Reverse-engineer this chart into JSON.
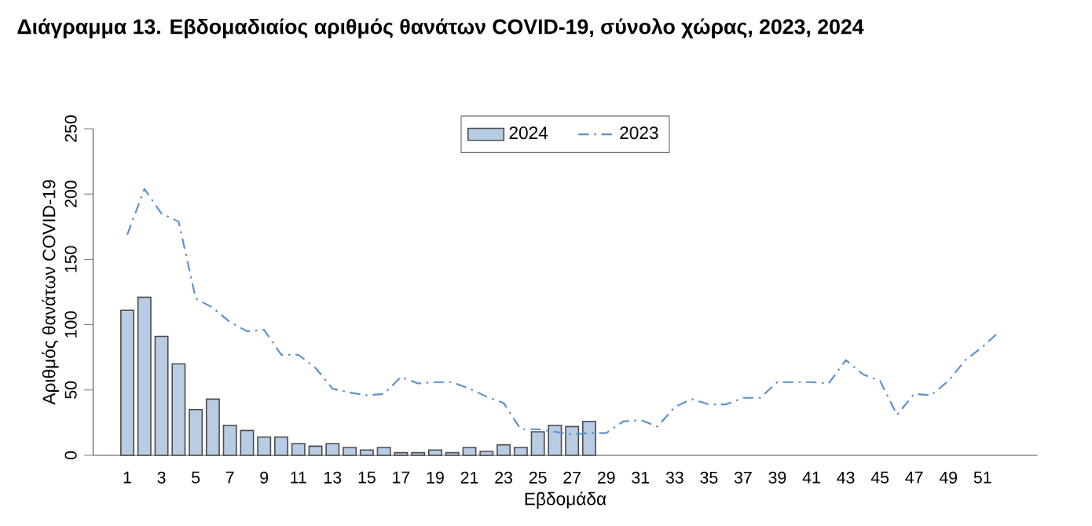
{
  "chart_data": {
    "type": "bar",
    "title": "Διάγραμμα 13. Εβδομαδιαίος αριθμός θανάτων COVID-19, σύνολο χώρας, 2023, 2024",
    "xlabel": "Εβδομάδα",
    "ylabel": "Αριθμός θανάτων COVID-19",
    "categories": [
      "1",
      null,
      "3",
      null,
      "5",
      null,
      "7",
      null,
      "9",
      null,
      "11",
      null,
      "13",
      null,
      "15",
      null,
      "17",
      null,
      "19",
      null,
      "21",
      null,
      "23",
      null,
      "25",
      null,
      "27",
      null,
      "29",
      null,
      "31",
      null,
      "33",
      null,
      "35",
      null,
      "37",
      null,
      "39",
      null,
      "41",
      null,
      "43",
      null,
      "45",
      null,
      "47",
      null,
      "49",
      null,
      "51",
      null
    ],
    "series": [
      {
        "name": "2024",
        "color": "#b8cce4",
        "values": [
          111,
          121,
          91,
          70,
          35,
          43,
          23,
          19,
          14,
          14,
          9,
          7,
          9,
          6,
          4,
          6,
          2,
          2,
          4,
          2,
          6,
          3,
          8,
          6,
          18,
          23,
          22,
          26,
          null,
          null,
          null,
          null,
          null,
          null,
          null,
          null,
          null,
          null,
          null,
          null,
          null,
          null,
          null,
          null,
          null,
          null,
          null,
          null,
          null,
          null,
          null,
          null
        ]
      },
      {
        "name": "2023",
        "type": "line",
        "color": "#5b8fd0",
        "line_style": "dashed",
        "values": [
          169,
          204,
          185,
          179,
          120,
          113,
          102,
          95,
          96,
          77,
          77,
          67,
          51,
          48,
          46,
          47,
          60,
          55,
          56,
          56,
          51,
          45,
          40,
          20,
          20,
          18,
          16,
          17,
          17,
          26,
          27,
          22,
          37,
          43,
          39,
          39,
          44,
          44,
          56,
          56,
          56,
          55,
          73,
          62,
          57,
          31,
          47,
          46,
          57,
          73,
          83,
          95
        ]
      }
    ],
    "ylim": [
      0,
      250
    ],
    "yticks": [
      0,
      50,
      100,
      150,
      200,
      250
    ],
    "grid": false,
    "legend": "top"
  }
}
